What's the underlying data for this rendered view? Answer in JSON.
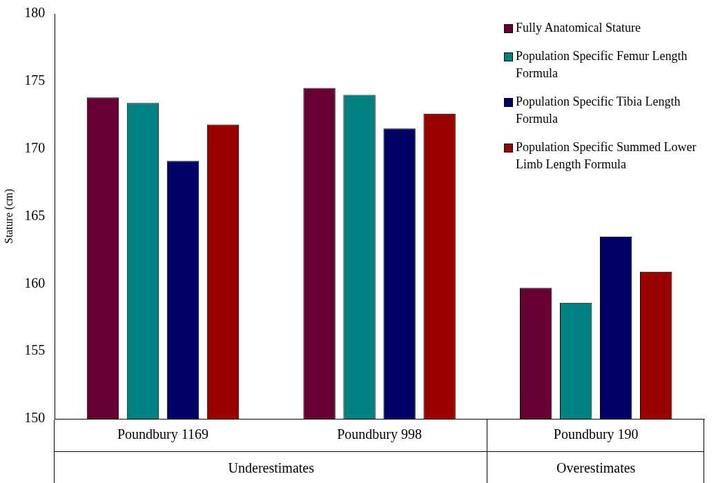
{
  "chart_data": {
    "type": "bar",
    "ylabel": "Stature (cm)",
    "categories": [
      "Poundbury 1169",
      "Poundbury 998",
      "Poundbury 190"
    ],
    "series": [
      {
        "name": "Fully Anatomical Stature",
        "color": "#660033",
        "values": [
          173.8,
          174.5,
          159.7
        ]
      },
      {
        "name": "Population Specific Femur Length Formula",
        "color": "#008080",
        "values": [
          173.4,
          174.0,
          158.6
        ]
      },
      {
        "name": "Population Specific Tibia Length Formula",
        "color": "#000066",
        "values": [
          169.1,
          171.5,
          163.5
        ]
      },
      {
        "name": "Population Specific Summed Lower Limb Length Formula",
        "color": "#990000",
        "values": [
          171.8,
          172.6,
          160.9
        ]
      }
    ],
    "ylim": [
      150,
      180
    ],
    "yticks": [
      150,
      155,
      160,
      165,
      170,
      175,
      180
    ],
    "grid": false,
    "legend": "top right",
    "annotations": [
      "Underestimates",
      "Overestimates"
    ]
  }
}
